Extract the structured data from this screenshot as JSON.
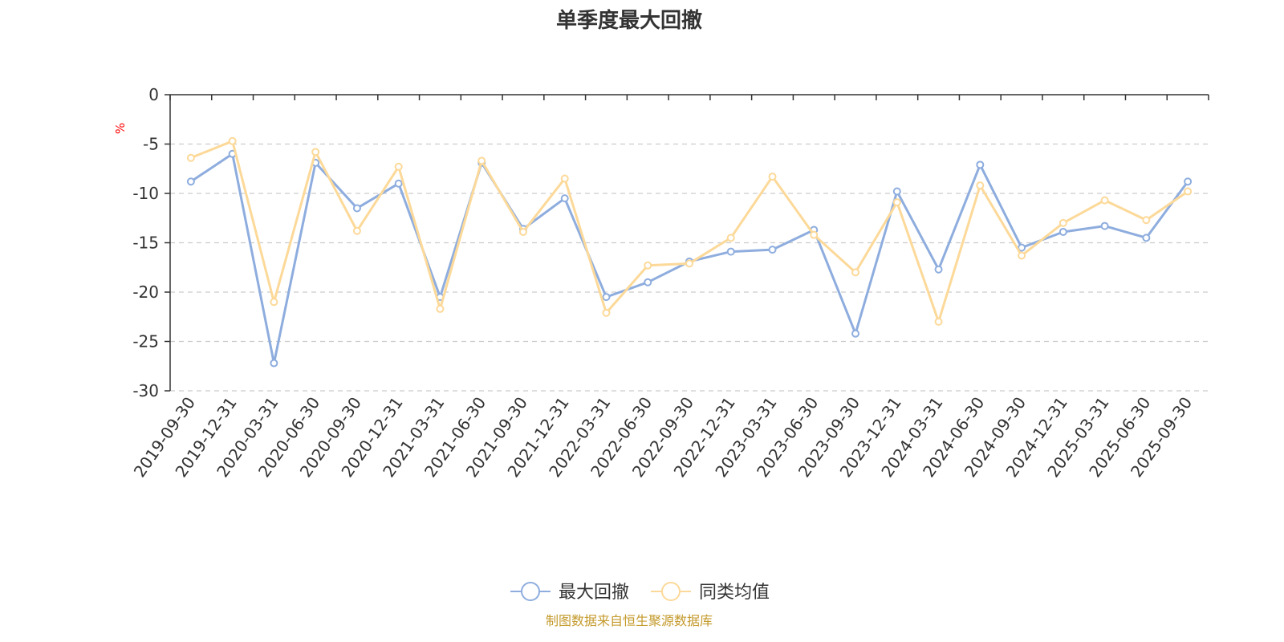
{
  "chart_data": {
    "type": "line",
    "title": "单季度最大回撤",
    "ylabel": "%",
    "xlabel": "",
    "ylim": [
      -30,
      0
    ],
    "y_ticks": [
      0,
      -5,
      -10,
      -15,
      -20,
      -25,
      -30
    ],
    "grid": true,
    "legend_position": "bottom",
    "categories": [
      "2019-09-30",
      "2019-12-31",
      "2020-03-31",
      "2020-06-30",
      "2020-09-30",
      "2020-12-31",
      "2021-03-31",
      "2021-06-30",
      "2021-09-30",
      "2021-12-31",
      "2022-03-31",
      "2022-06-30",
      "2022-09-30",
      "2022-12-31",
      "2023-03-31",
      "2023-06-30",
      "2023-09-30",
      "2023-12-31",
      "2024-03-31",
      "2024-06-30",
      "2024-09-30",
      "2024-12-31",
      "2025-03-31",
      "2025-06-30",
      "2025-09-30"
    ],
    "series": [
      {
        "name": "最大回撤",
        "color": "#8eadde",
        "values": [
          -8.8,
          -6.0,
          -27.2,
          -6.9,
          -11.5,
          -9.0,
          -20.5,
          -6.9,
          -13.6,
          -10.5,
          -20.5,
          -19.0,
          -16.9,
          -15.9,
          -15.7,
          -13.7,
          -24.2,
          -9.8,
          -17.7,
          -7.1,
          -15.5,
          -13.9,
          -13.3,
          -14.5,
          -8.8
        ]
      },
      {
        "name": "同类均值",
        "color": "#fcd999",
        "values": [
          -6.4,
          -4.7,
          -21.0,
          -5.8,
          -13.8,
          -7.3,
          -21.7,
          -6.7,
          -13.9,
          -8.5,
          -22.1,
          -17.3,
          -17.1,
          -14.5,
          -8.3,
          -14.2,
          -18.0,
          -10.9,
          -23.0,
          -9.2,
          -16.3,
          -13.0,
          -10.7,
          -12.7,
          -9.8
        ]
      }
    ]
  },
  "footer": {
    "source": "制图数据来自恒生聚源数据库",
    "source_color": "#c49a2c"
  },
  "style": {
    "axis_color": "#333333",
    "grid_color": "#cccccc",
    "unit_color": "#ff0000"
  }
}
